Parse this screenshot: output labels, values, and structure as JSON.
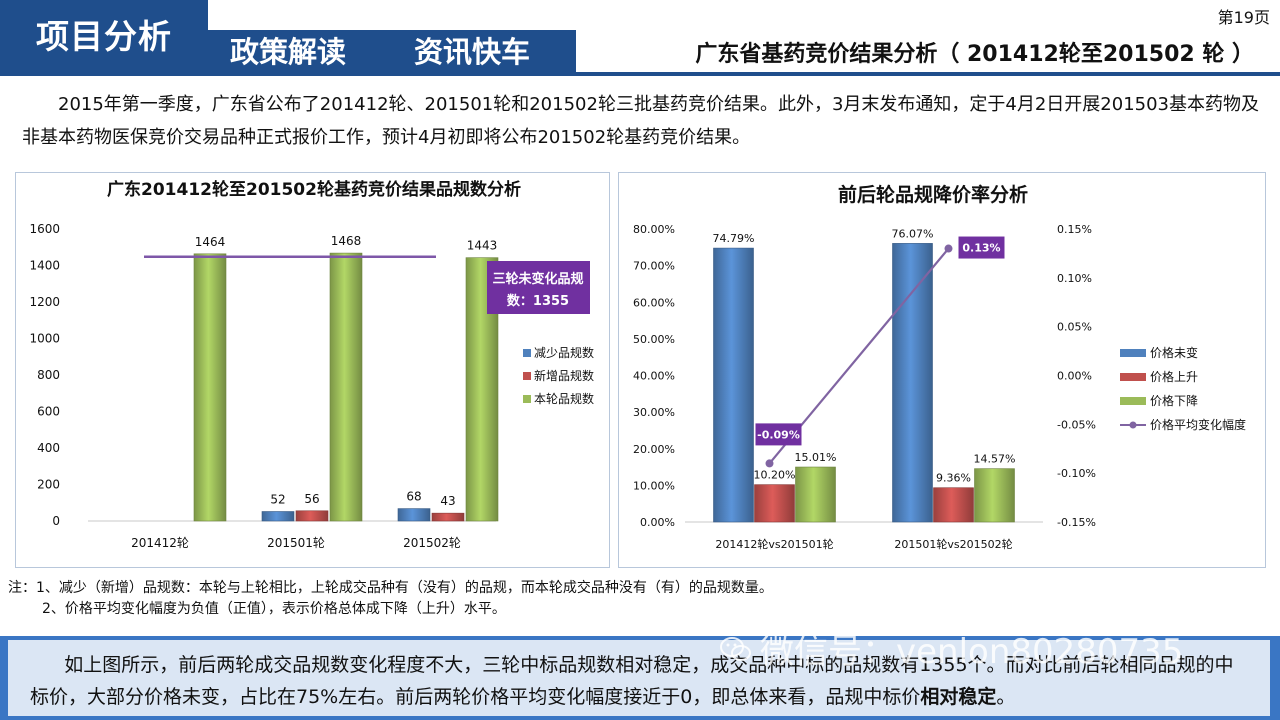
{
  "header": {
    "main_tab": "项目分析",
    "tabs": [
      "政策解读",
      "资讯快车"
    ],
    "page_number": "第19页",
    "title": "广东省基药竞价结果分析（ 201412轮至201502 轮 ）"
  },
  "intro_text": "2015年第一季度，广东省公布了201412轮、201501轮和201502轮三批基药竞价结果。此外，3月末发布通知，定于4月2日开展201503基本药物及非基本药物医保竞价交易品种正式报价工作，预计4月初即将公布201502轮基药竞价结果。",
  "chart_data": [
    {
      "type": "bar",
      "title": "广东201412轮至201502轮基药竞价结果品规数分析",
      "categories": [
        "201412轮",
        "201501轮",
        "201502轮"
      ],
      "series": [
        {
          "name": "减少品规数",
          "values": [
            null,
            52,
            68
          ],
          "labels": [
            "",
            "52",
            "68"
          ],
          "color": "#4f81bd"
        },
        {
          "name": "新增品规数",
          "values": [
            null,
            56,
            43
          ],
          "labels": [
            "",
            "56",
            "43"
          ],
          "color": "#c0504d"
        },
        {
          "name": "本轮品规数",
          "values": [
            1464,
            1468,
            1443
          ],
          "labels": [
            "1464",
            "1468",
            "1443"
          ],
          "color": "#9bbb59"
        }
      ],
      "reference_line": {
        "value": 1355,
        "color": "#7e57a8"
      },
      "annotation": {
        "text_line1": "三轮未变化品规",
        "text_line2": "数：1355",
        "color": "#7030a0"
      },
      "ylim": [
        0,
        1600
      ],
      "yticks": [
        "0",
        "200",
        "400",
        "600",
        "800",
        "1000",
        "1200",
        "1400",
        "1600"
      ],
      "legend_position": "right"
    },
    {
      "type": "bar",
      "title": "前后轮品规降价率分析",
      "categories": [
        "201412轮vs201501轮",
        "201501轮vs201502轮"
      ],
      "series": [
        {
          "name": "价格未变",
          "values": [
            74.79,
            76.07
          ],
          "labels": [
            "74.79%",
            "76.07%"
          ],
          "color": "#4f81bd"
        },
        {
          "name": "价格上升",
          "values": [
            10.2,
            9.36
          ],
          "labels": [
            "10.20%",
            "9.36%"
          ],
          "color": "#c0504d"
        },
        {
          "name": "价格下降",
          "values": [
            15.01,
            14.57
          ],
          "labels": [
            "15.01%",
            "14.57%"
          ],
          "color": "#9bbb59"
        }
      ],
      "line_series": {
        "name": "价格平均变化幅度",
        "values": [
          -0.09,
          0.13
        ],
        "labels": [
          "-0.09%",
          "0.13%"
        ],
        "color": "#8064a2",
        "axis": "right"
      },
      "ylim_left": [
        0,
        80
      ],
      "ylim_right": [
        -0.15,
        0.15
      ],
      "yticks_left": [
        "0.00%",
        "10.00%",
        "20.00%",
        "30.00%",
        "40.00%",
        "50.00%",
        "60.00%",
        "70.00%",
        "80.00%"
      ],
      "yticks_right": [
        "-0.15%",
        "-0.10%",
        "-0.05%",
        "0.00%",
        "0.05%",
        "0.10%",
        "0.15%"
      ],
      "legend_position": "right"
    }
  ],
  "notes": {
    "line1": "注：1、减少（新增）品规数：本轮与上轮相比，上轮成交品种有（没有）的品规，而本轮成交品种没有（有）的品规数量。",
    "line2": "2、价格平均变化幅度为负值（正值），表示价格总体成下降（上升）水平。"
  },
  "summary": {
    "text_before": "如上图所示，前后两轮成交品规数变化程度不大，三轮中标品规数相对稳定，成交品种中标的品规数有1355个。而对比前后轮相同品规的中标价，大部分价格未变，占比在75%左右。前后两轮价格平均变化幅度接近于0，即总体来看，品规中标价",
    "text_bold": "相对稳定",
    "text_after": "。"
  },
  "watermark": "微信号：venlon80280735",
  "colors": {
    "header_blue": "#1f4e8c",
    "bottom_blue": "#3a76c4",
    "bottom_fill": "#dbe6f4"
  }
}
